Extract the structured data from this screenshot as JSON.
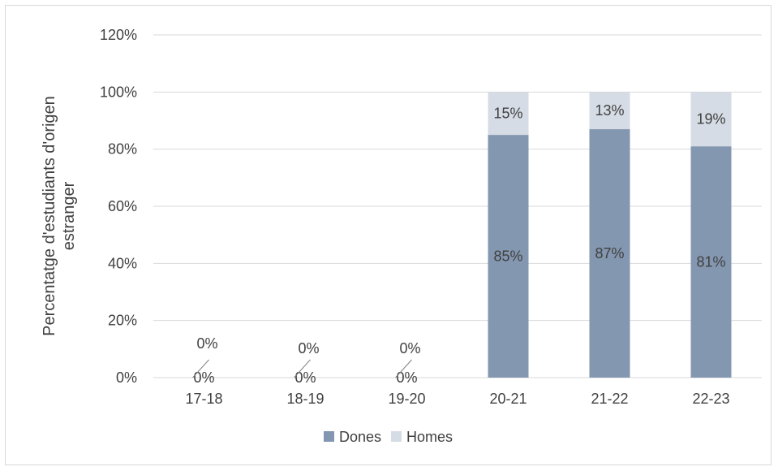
{
  "chart_data": {
    "type": "bar",
    "stacked": true,
    "categories": [
      "17-18",
      "18-19",
      "19-20",
      "20-21",
      "21-22",
      "22-23"
    ],
    "series": [
      {
        "name": "Dones",
        "values": [
          0,
          0,
          0,
          85,
          87,
          81
        ],
        "labels": [
          "0%",
          "0%",
          "0%",
          "85%",
          "87%",
          "81%"
        ]
      },
      {
        "name": "Homes",
        "values": [
          0,
          0,
          0,
          15,
          13,
          19
        ],
        "labels": [
          "0%",
          "0%",
          "0%",
          "15%",
          "13%",
          "19%"
        ]
      }
    ],
    "title": "",
    "xlabel": "",
    "ylabel_lines": [
      "Percentatge d'estudiants d'origen",
      "estranger"
    ],
    "ylim": [
      0,
      120
    ],
    "yticks": [
      0,
      20,
      40,
      60,
      80,
      100,
      120
    ],
    "ytick_labels": [
      "0%",
      "20%",
      "40%",
      "60%",
      "80%",
      "100%",
      "120%"
    ],
    "grid": true,
    "legend_position": "bottom",
    "colors": {
      "Dones": "#8497b0",
      "Homes": "#d6dce5",
      "grid": "#d9d9d9",
      "text": "#404040"
    }
  }
}
